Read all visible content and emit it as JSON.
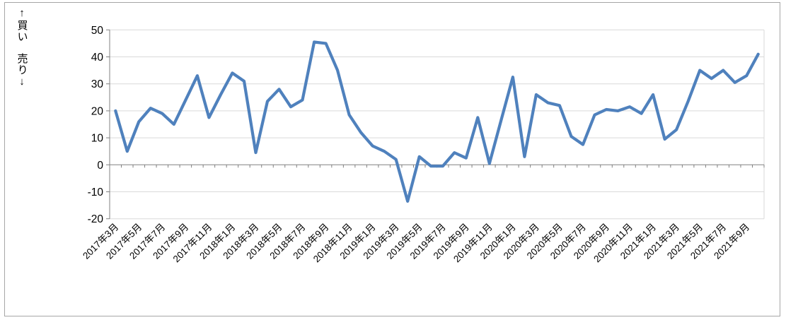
{
  "page": {
    "background": "#ffffff",
    "frame_border_color": "#a6a6a6"
  },
  "chart": {
    "y_axis_title_top": "↑買い",
    "y_axis_title_bottom": "売り↓",
    "line_color": "#4f81bd",
    "gridline_color": "#d9d9d9",
    "axis_color": "#808080",
    "text_color": "#000000",
    "y_tick_labels": [
      "50",
      "40",
      "30",
      "20",
      "10",
      "0",
      "-10",
      "-20"
    ]
  },
  "chart_data": {
    "type": "line",
    "title": "",
    "xlabel": "",
    "ylabel": "↑買い 売り↓",
    "ylim": [
      -20,
      50
    ],
    "y_tick_step": 10,
    "grid": "horizontal",
    "legend": "none",
    "x_label_every": 2,
    "x": [
      "2017年3月",
      "2017年4月",
      "2017年5月",
      "2017年6月",
      "2017年7月",
      "2017年8月",
      "2017年9月",
      "2017年10月",
      "2017年11月",
      "2017年12月",
      "2018年1月",
      "2018年2月",
      "2018年3月",
      "2018年4月",
      "2018年5月",
      "2018年6月",
      "2018年7月",
      "2018年8月",
      "2018年9月",
      "2018年10月",
      "2018年11月",
      "2018年12月",
      "2019年1月",
      "2019年2月",
      "2019年3月",
      "2019年4月",
      "2019年5月",
      "2019年6月",
      "2019年7月",
      "2019年8月",
      "2019年9月",
      "2019年10月",
      "2019年11月",
      "2019年12月",
      "2020年1月",
      "2020年2月",
      "2020年3月",
      "2020年4月",
      "2020年5月",
      "2020年6月",
      "2020年7月",
      "2020年8月",
      "2020年9月",
      "2020年10月",
      "2020年11月",
      "2020年12月",
      "2021年1月",
      "2021年2月",
      "2021年3月",
      "2021年4月",
      "2021年5月",
      "2021年6月",
      "2021年7月",
      "2021年8月",
      "2021年9月",
      "2021年10月"
    ],
    "values": [
      20,
      5,
      16,
      21,
      19,
      15,
      24,
      33,
      17.5,
      26,
      34,
      31,
      4.5,
      23.5,
      28,
      21.5,
      24,
      45.5,
      45,
      35,
      18.5,
      12,
      7,
      5,
      2,
      -13.5,
      3,
      -0.5,
      -0.5,
      4.5,
      2.5,
      17.5,
      0.5,
      16.5,
      32.5,
      3,
      26,
      23,
      22,
      10.5,
      7.5,
      18.5,
      20.5,
      20,
      21.5,
      19,
      26,
      9.5,
      13,
      23.5,
      35,
      32,
      35,
      30.5,
      33,
      41
    ]
  }
}
